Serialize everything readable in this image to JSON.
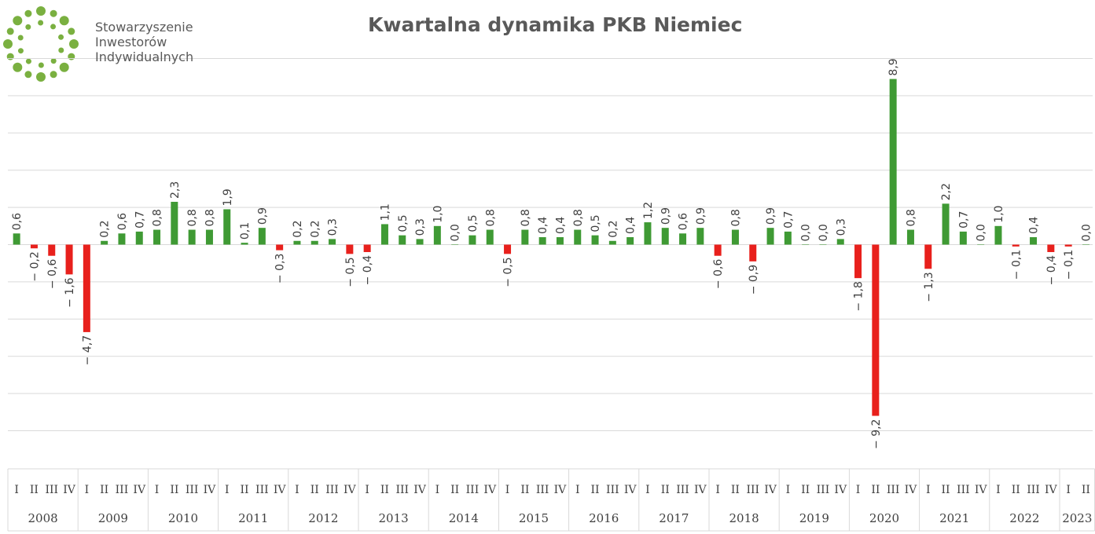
{
  "logo": {
    "line1": "Stowarzyszenie",
    "line2": "Inwestorów",
    "line3": "Indywidualnych",
    "icon": "green-dots-circle-icon",
    "color": "#7ab040"
  },
  "chart_data": {
    "type": "bar",
    "title": "Kwartalna dynamika PKB Niemiec",
    "xlabel": "",
    "ylabel": "",
    "ylim": [
      -12,
      10
    ],
    "grid": true,
    "legend": "none",
    "colors": {
      "positive": "#3f9a34",
      "negative": "#e8201c",
      "gridline": "#d9d9d9",
      "label": "#404040"
    },
    "years": [
      "2008",
      "2009",
      "2010",
      "2011",
      "2012",
      "2013",
      "2014",
      "2015",
      "2016",
      "2017",
      "2018",
      "2019",
      "2020",
      "2021",
      "2022",
      "2023"
    ],
    "quarter_labels": [
      "I",
      "II",
      "III",
      "IV"
    ],
    "categories": [
      "2008 I",
      "2008 II",
      "2008 III",
      "2008 IV",
      "2009 I",
      "2009 II",
      "2009 III",
      "2009 IV",
      "2010 I",
      "2010 II",
      "2010 III",
      "2010 IV",
      "2011 I",
      "2011 II",
      "2011 III",
      "2011 IV",
      "2012 I",
      "2012 II",
      "2012 III",
      "2012 IV",
      "2013 I",
      "2013 II",
      "2013 III",
      "2013 IV",
      "2014 I",
      "2014 II",
      "2014 III",
      "2014 IV",
      "2015 I",
      "2015 II",
      "2015 III",
      "2015 IV",
      "2016 I",
      "2016 II",
      "2016 III",
      "2016 IV",
      "2017 I",
      "2017 II",
      "2017 III",
      "2017 IV",
      "2018 I",
      "2018 II",
      "2018 III",
      "2018 IV",
      "2019 I",
      "2019 II",
      "2019 III",
      "2019 IV",
      "2020 I",
      "2020 II",
      "2020 III",
      "2020 IV",
      "2021 I",
      "2021 II",
      "2021 III",
      "2021 IV",
      "2022 I",
      "2022 II",
      "2022 III",
      "2022 IV",
      "2023 I",
      "2023 II"
    ],
    "values": [
      0.6,
      -0.2,
      -0.6,
      -1.6,
      -4.7,
      0.2,
      0.6,
      0.7,
      0.8,
      2.3,
      0.8,
      0.8,
      1.9,
      0.1,
      0.9,
      -0.3,
      0.2,
      0.2,
      0.3,
      -0.5,
      -0.4,
      1.1,
      0.5,
      0.3,
      1.0,
      0.0,
      0.5,
      0.8,
      -0.5,
      0.8,
      0.4,
      0.4,
      0.8,
      0.5,
      0.2,
      0.4,
      1.2,
      0.9,
      0.6,
      0.9,
      -0.6,
      0.8,
      -0.9,
      0.9,
      0.7,
      0.0,
      0.0,
      0.3,
      -1.8,
      -9.2,
      8.9,
      0.8,
      -1.3,
      2.2,
      0.7,
      0.0,
      1.0,
      -0.1,
      0.4,
      -0.4,
      -0.1,
      0.0
    ],
    "data_labels": [
      "0,6",
      "− 0,2",
      "− 0,6",
      "− 1,6",
      "− 4,7",
      "0,2",
      "0,6",
      "0,7",
      "0,8",
      "2,3",
      "0,8",
      "0,8",
      "1,9",
      "0,1",
      "0,9",
      "− 0,3",
      "0,2",
      "0,2",
      "0,3",
      "− 0,5",
      "− 0,4",
      "1,1",
      "0,5",
      "0,3",
      "1,0",
      "0,0",
      "0,5",
      "0,8",
      "− 0,5",
      "0,8",
      "0,4",
      "0,4",
      "0,8",
      "0,5",
      "0,2",
      "0,4",
      "1,2",
      "0,9",
      "0,6",
      "0,9",
      "− 0,6",
      "0,8",
      "− 0,9",
      "0,9",
      "0,7",
      "0,0",
      "0,0",
      "0,3",
      "− 1,8",
      "− 9,2",
      "8,9",
      "0,8",
      "− 1,3",
      "2,2",
      "0,7",
      "0,0",
      "1,0",
      "− 0,1",
      "0,4",
      "− 0,4",
      "− 0,1",
      "0,0"
    ]
  }
}
